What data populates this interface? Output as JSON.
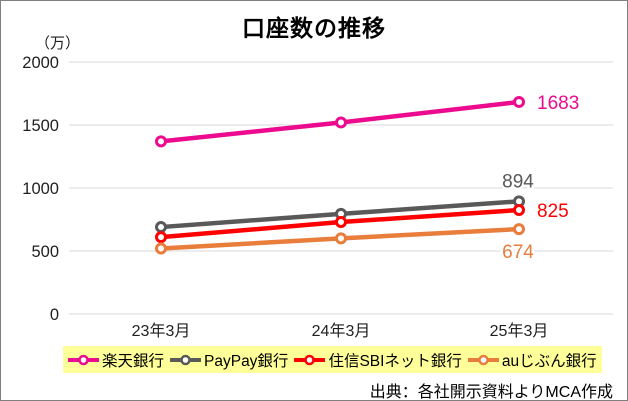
{
  "title": "口座数の推移",
  "unit_label": "（万）",
  "source": "出典：各社開示資料よりMCA作成",
  "chart_data": {
    "type": "line",
    "categories": [
      "23年3月",
      "24年3月",
      "25年3月"
    ],
    "series": [
      {
        "id": "rakuten-bank",
        "name": "楽天銀行",
        "color": "#EC0A8E",
        "values": [
          1370,
          1520,
          1683
        ],
        "end_label": "1683",
        "end_label_position": "right"
      },
      {
        "id": "paypay-bank",
        "name": "PayPay銀行",
        "color": "#595959",
        "values": [
          690,
          795,
          894
        ],
        "end_label": "894",
        "end_label_position": "top"
      },
      {
        "id": "sbi-net-bank",
        "name": "住信SBIネット銀行",
        "color": "#FF0000",
        "values": [
          610,
          730,
          825
        ],
        "end_label": "825",
        "end_label_position": "right"
      },
      {
        "id": "au-jibun-bank",
        "name": "auじぶん銀行",
        "color": "#E87D3C",
        "values": [
          520,
          600,
          674
        ],
        "end_label": "674",
        "end_label_position": "bottom"
      }
    ],
    "ylim": [
      0,
      2000
    ],
    "yticks": [
      0,
      500,
      1000,
      1500,
      2000
    ],
    "grid": true,
    "gridline_color": "#D9D9D9",
    "legend_position": "bottom",
    "legend_background": "#FFFF99"
  }
}
